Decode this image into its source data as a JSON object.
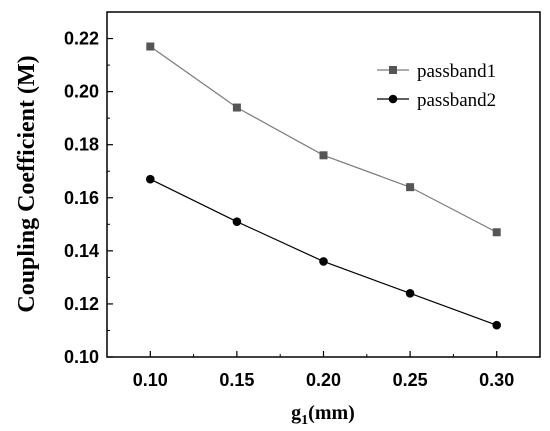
{
  "chart_data": {
    "type": "line",
    "x": [
      0.1,
      0.15,
      0.2,
      0.25,
      0.3
    ],
    "x_tick_labels": [
      "0.10",
      "0.15",
      "0.20",
      "0.25",
      "0.30"
    ],
    "y_tick_labels": [
      "0.10",
      "0.12",
      "0.14",
      "0.16",
      "0.18",
      "0.20",
      "0.22"
    ],
    "xlim": [
      0.075,
      0.325
    ],
    "ylim": [
      0.1,
      0.23
    ],
    "ylabel": "Coupling Coefficient (M)",
    "xlabel_main": "g",
    "xlabel_sub": "1",
    "xlabel_unit": "(mm)",
    "grid": false,
    "legend_position": "top-right",
    "series": [
      {
        "name": "passband1",
        "marker": "square",
        "color": "#555555",
        "line_color": "#7a7a7a",
        "values": [
          0.217,
          0.194,
          0.176,
          0.164,
          0.147
        ]
      },
      {
        "name": "passband2",
        "marker": "circle",
        "color": "#000000",
        "line_color": "#000000",
        "values": [
          0.167,
          0.151,
          0.136,
          0.124,
          0.112
        ]
      }
    ]
  }
}
